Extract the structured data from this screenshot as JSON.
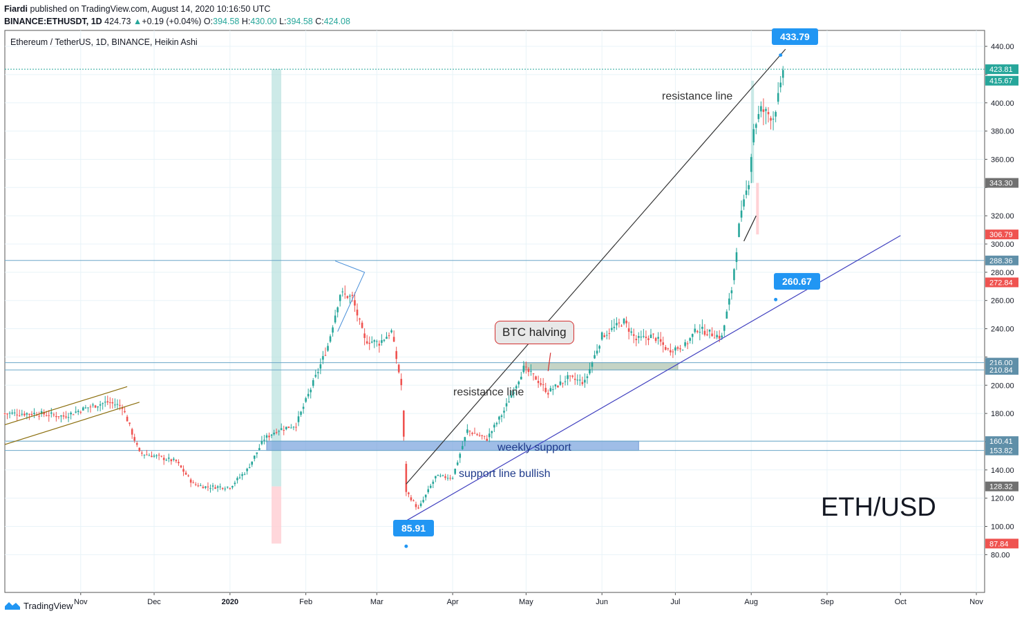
{
  "header": {
    "line1_author": "Fiardi",
    "line1_text": "published on TradingView.com, August 14, 2020 10:16:50 UTC",
    "symbol": "BINANCE:ETHUSDT, 1D",
    "last": "424.73",
    "change": "+0.19 (+0.04%)",
    "o_label": "O:",
    "o": "394.58",
    "h_label": "H:",
    "h": "430.00",
    "l_label": "L:",
    "l": "394.58",
    "c_label": "C:",
    "c": "424.08"
  },
  "footer": {
    "brand": "TradingView"
  },
  "annotations": {
    "callout_top": "433.79",
    "callout_mid": "260.67",
    "callout_low": "85.91",
    "btc_halving": "BTC halving",
    "resistance_upper": "resistance line",
    "resistance_lower": "resistance line",
    "weekly_support": "weekly support",
    "support_line": "support line bullish",
    "big_label": "ETH/USD"
  },
  "colors": {
    "up": "#26a69a",
    "down": "#ef5350",
    "callout": "#2196f3",
    "support_line": "#3f3fbf",
    "grid": "#e8f3f8"
  },
  "chart_data": {
    "type": "candlestick",
    "title": "Ethereum / TetherUS, 1D, BINANCE, Heikin Ashi",
    "y_ticks": [
      80,
      100,
      120,
      140,
      160,
      180,
      200,
      220,
      240,
      260,
      280,
      300,
      320,
      340,
      360,
      380,
      400,
      420,
      440
    ],
    "y_tick_labels": [
      "80.00",
      "100.00",
      "120.00",
      "140.00",
      "",
      "180.00",
      "200.00",
      "",
      "240.00",
      "260.00",
      "280.00",
      "300.00",
      "320.00",
      "",
      "360.00",
      "380.00",
      "400.00",
      "",
      "440.00"
    ],
    "x_tick_labels": [
      "Nov",
      "Dec",
      "2020",
      "Feb",
      "Mar",
      "Apr",
      "May",
      "Jun",
      "Jul",
      "Aug",
      "Sep",
      "Oct",
      "Nov"
    ],
    "price_labels": [
      {
        "value": 423.81,
        "text": "423.81",
        "color": "#26a69a"
      },
      {
        "value": 415.67,
        "text": "415.67",
        "color": "#26a69a"
      },
      {
        "value": 343.3,
        "text": "343.30",
        "color": "#707070"
      },
      {
        "value": 306.79,
        "text": "306.79",
        "color": "#ef5350"
      },
      {
        "value": 288.36,
        "text": "288.36",
        "color": "#5f8fa8"
      },
      {
        "value": 272.84,
        "text": "272.84",
        "color": "#ef5350"
      },
      {
        "value": 216.0,
        "text": "216.00",
        "color": "#5f8fa8"
      },
      {
        "value": 210.84,
        "text": "210.84",
        "color": "#5f8fa8"
      },
      {
        "value": 160.41,
        "text": "160.41",
        "color": "#5f8fa8"
      },
      {
        "value": 153.82,
        "text": "153.82",
        "color": "#5f8fa8"
      },
      {
        "value": 128.32,
        "text": "128.32",
        "color": "#707070"
      },
      {
        "value": 87.84,
        "text": "87.84",
        "color": "#ef5350"
      }
    ],
    "horizontal_lines": [
      423.81,
      288.36,
      216.0,
      210.84,
      160.41,
      153.82
    ],
    "close_path": [
      [
        "2019-10-15",
        180
      ],
      [
        "2019-10-25",
        178
      ],
      [
        "2019-11-05",
        185
      ],
      [
        "2019-11-12",
        188
      ],
      [
        "2019-11-18",
        185
      ],
      [
        "2019-11-25",
        152
      ],
      [
        "2019-12-01",
        150
      ],
      [
        "2019-12-10",
        146
      ],
      [
        "2019-12-17",
        130
      ],
      [
        "2019-12-22",
        128
      ],
      [
        "2020-01-01",
        128
      ],
      [
        "2020-01-08",
        140
      ],
      [
        "2020-01-15",
        162
      ],
      [
        "2020-01-20",
        168
      ],
      [
        "2020-01-28",
        172
      ],
      [
        "2020-02-06",
        210
      ],
      [
        "2020-02-10",
        228
      ],
      [
        "2020-02-15",
        265
      ],
      [
        "2020-02-20",
        262
      ],
      [
        "2020-02-25",
        232
      ],
      [
        "2020-03-02",
        230
      ],
      [
        "2020-03-07",
        238
      ],
      [
        "2020-03-11",
        200
      ],
      [
        "2020-03-13",
        125
      ],
      [
        "2020-03-18",
        112
      ],
      [
        "2020-03-25",
        135
      ],
      [
        "2020-04-01",
        135
      ],
      [
        "2020-04-07",
        168
      ],
      [
        "2020-04-15",
        162
      ],
      [
        "2020-04-22",
        182
      ],
      [
        "2020-04-30",
        212
      ],
      [
        "2020-05-05",
        205
      ],
      [
        "2020-05-10",
        195
      ],
      [
        "2020-05-18",
        205
      ],
      [
        "2020-05-25",
        202
      ],
      [
        "2020-06-01",
        235
      ],
      [
        "2020-06-10",
        245
      ],
      [
        "2020-06-15",
        232
      ],
      [
        "2020-06-22",
        235
      ],
      [
        "2020-06-28",
        225
      ],
      [
        "2020-07-05",
        228
      ],
      [
        "2020-07-10",
        240
      ],
      [
        "2020-07-20",
        234
      ],
      [
        "2020-07-24",
        268
      ],
      [
        "2020-07-27",
        312
      ],
      [
        "2020-07-31",
        345
      ],
      [
        "2020-08-02",
        382
      ],
      [
        "2020-08-05",
        395
      ],
      [
        "2020-08-10",
        390
      ],
      [
        "2020-08-13",
        410
      ],
      [
        "2020-08-14",
        424
      ]
    ]
  }
}
